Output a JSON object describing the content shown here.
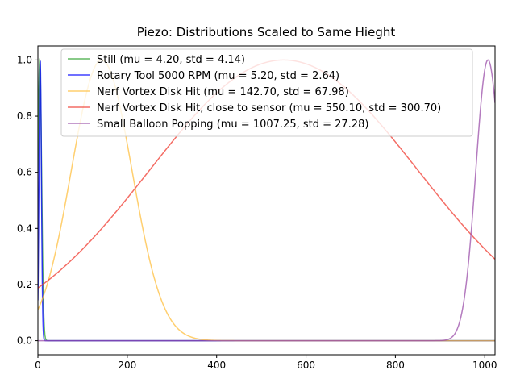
{
  "chart_data": {
    "type": "line",
    "title": "Piezo: Distributions Scaled to Same Hieght",
    "xlabel": "",
    "ylabel": "",
    "xlim": [
      0,
      1023
    ],
    "ylim": [
      -0.05,
      1.05
    ],
    "xticks": [
      0,
      200,
      400,
      600,
      800,
      1000
    ],
    "yticks": [
      0.0,
      0.2,
      0.4,
      0.6,
      0.8,
      1.0
    ],
    "xtick_labels": [
      "0",
      "200",
      "400",
      "600",
      "800",
      "1000"
    ],
    "ytick_labels": [
      "0.0",
      "0.2",
      "0.4",
      "0.6",
      "0.8",
      "1.0"
    ],
    "grid": false,
    "legend_position": "top-right",
    "series": [
      {
        "name": "Still (mu = 4.20,  std = 4.14)",
        "mu": 4.2,
        "std": 4.14,
        "color": "#2ca02c"
      },
      {
        "name": "Rotary Tool 5000 RPM (mu = 5.20,  std = 2.64)",
        "mu": 5.2,
        "std": 2.64,
        "color": "#0000ff"
      },
      {
        "name": "Nerf Vortex Disk Hit (mu = 142.70,  std = 67.98)",
        "mu": 142.7,
        "std": 67.98,
        "color": "#ffbf3f"
      },
      {
        "name": "Nerf Vortex Disk Hit, close to sensor (mu = 550.10,  std = 300.70)",
        "mu": 550.1,
        "std": 300.7,
        "color": "#f03c32"
      },
      {
        "name": "Small Balloon Popping (mu = 1007.25,  std = 27.28)",
        "mu": 1007.25,
        "std": 27.28,
        "color": "#9b4fa9"
      }
    ]
  }
}
